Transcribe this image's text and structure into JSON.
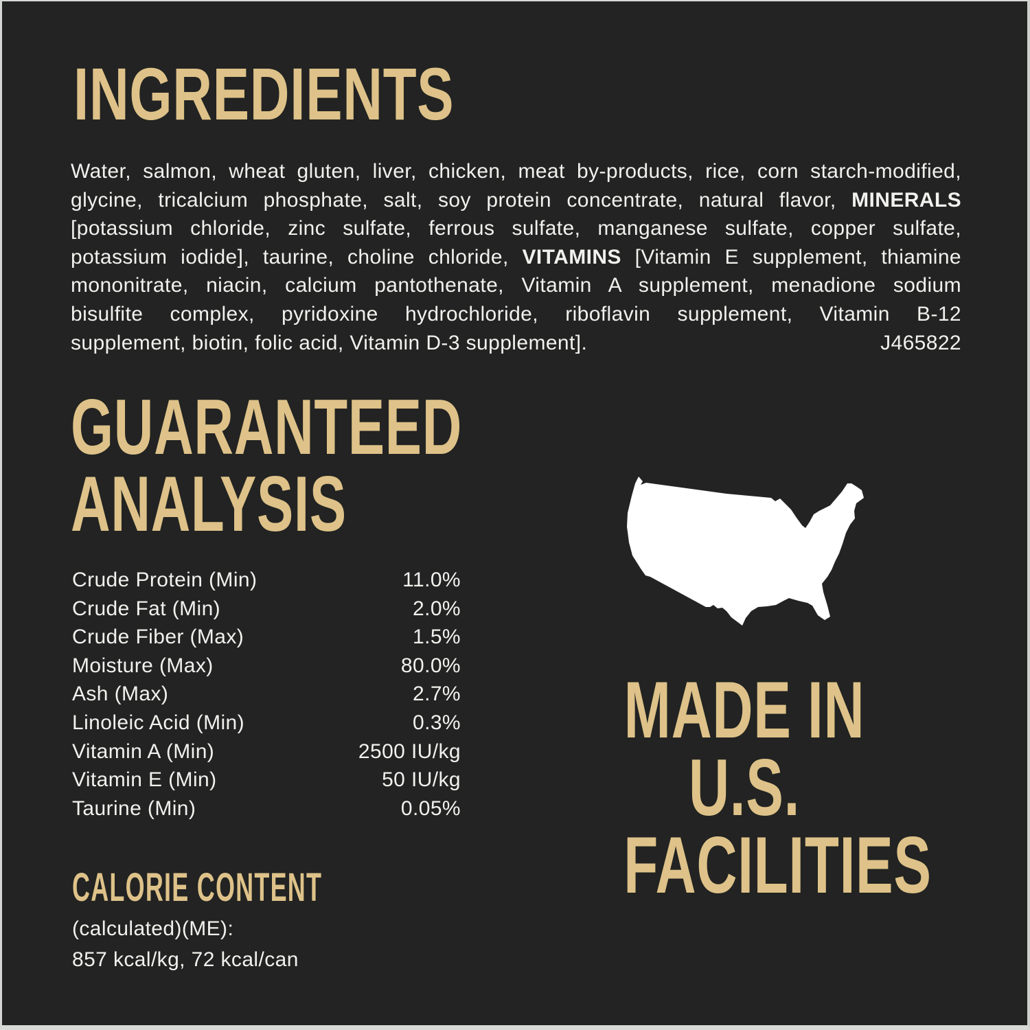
{
  "palette": {
    "background": "#222322",
    "gold": "#dec289",
    "body_text": "#f1f1ee",
    "map_fill": "#ffffff"
  },
  "ingredients": {
    "title": "INGREDIENTS",
    "lines": [
      [
        {
          "t": "Water, salmon, wheat gluten, liver, chicken, meat by-products, rice, corn starch-modified,",
          "b": false
        }
      ],
      [
        {
          "t": "glycine, tricalcium phosphate, salt, soy protein concentrate, natural flavor, ",
          "b": false
        },
        {
          "t": "MINERALS",
          "b": true
        }
      ],
      [
        {
          "t": "[potassium chloride, zinc sulfate, ferrous sulfate, manganese sulfate, copper sulfate,",
          "b": false
        }
      ],
      [
        {
          "t": "potassium iodide], taurine, choline chloride, ",
          "b": false
        },
        {
          "t": "VITAMINS",
          "b": true
        },
        {
          "t": " [Vitamin E supplement, thiamine",
          "b": false
        }
      ],
      [
        {
          "t": "mononitrate, niacin, calcium pantothenate, Vitamin A supplement, menadione sodium",
          "b": false
        }
      ],
      [
        {
          "t": "bisulfite complex, pyridoxine hydrochloride, riboflavin supplement, Vitamin B-12",
          "b": false
        }
      ]
    ],
    "last_line": "supplement, biotin, folic acid, Vitamin D-3 supplement].",
    "code": "J465822"
  },
  "analysis": {
    "title_line1": "GUARANTEED",
    "title_line2": "ANALYSIS",
    "rows": [
      {
        "label": "Crude Protein (Min)",
        "value": "11.0%"
      },
      {
        "label": "Crude Fat (Min)",
        "value": "2.0%"
      },
      {
        "label": "Crude Fiber (Max)",
        "value": "1.5%"
      },
      {
        "label": "Moisture (Max)",
        "value": "80.0%"
      },
      {
        "label": "Ash (Max)",
        "value": "2.7%"
      },
      {
        "label": "Linoleic Acid (Min)",
        "value": "0.3%"
      },
      {
        "label": "Vitamin A (Min)",
        "value": "2500 IU/kg"
      },
      {
        "label": "Vitamin E (Min)",
        "value": "50 IU/kg"
      },
      {
        "label": "Taurine (Min)",
        "value": "0.05%"
      }
    ]
  },
  "calorie": {
    "title": "CALORIE CONTENT",
    "line1": "(calculated)(ME):",
    "line2": "857 kcal/kg, 72 kcal/can"
  },
  "made_in": {
    "line1": "MADE IN",
    "line2": "U.S.",
    "line3": "FACILITIES"
  }
}
